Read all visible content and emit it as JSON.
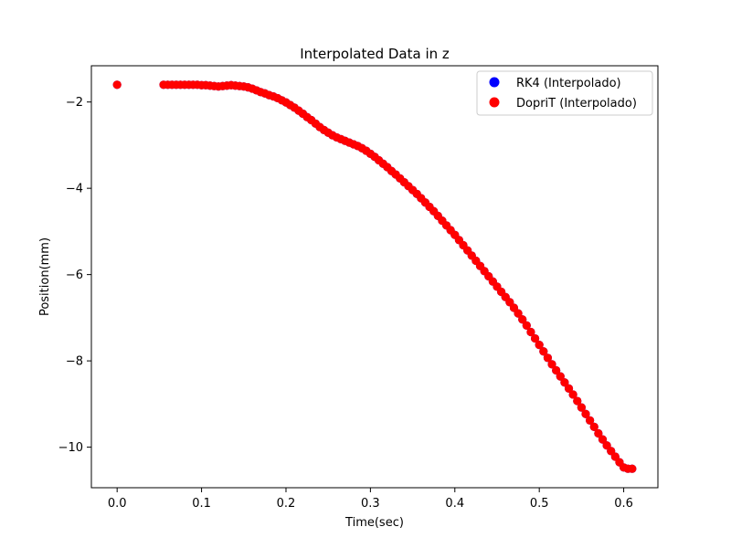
{
  "chart_data": {
    "type": "scatter",
    "title": "Interpolated Data in z",
    "xlabel": "Time(sec)",
    "ylabel": "Position(mm)",
    "xlim": [
      -0.0305,
      0.6405
    ],
    "ylim": [
      -10.94,
      -1.16
    ],
    "xticks": [
      0.0,
      0.1,
      0.2,
      0.3,
      0.4,
      0.5,
      0.6
    ],
    "xtick_labels": [
      "0.0",
      "0.1",
      "0.2",
      "0.3",
      "0.4",
      "0.5",
      "0.6"
    ],
    "yticks": [
      -2,
      -4,
      -6,
      -8,
      -10
    ],
    "ytick_labels": [
      "−2",
      "−4",
      "−6",
      "−8",
      "−10"
    ],
    "grid": false,
    "legend_position": "upper-right",
    "series": [
      {
        "name": "RK4 (Interpolado)",
        "color": "#0000ff",
        "points": [
          [
            0.0,
            -1.6
          ],
          [
            0.055,
            -1.6
          ],
          [
            0.06,
            -1.6
          ],
          [
            0.065,
            -1.6
          ],
          [
            0.07,
            -1.6
          ],
          [
            0.075,
            -1.6
          ],
          [
            0.08,
            -1.6
          ],
          [
            0.085,
            -1.6
          ],
          [
            0.09,
            -1.6
          ],
          [
            0.095,
            -1.6
          ],
          [
            0.1,
            -1.61
          ],
          [
            0.105,
            -1.61
          ],
          [
            0.11,
            -1.62
          ],
          [
            0.115,
            -1.63
          ],
          [
            0.12,
            -1.64
          ],
          [
            0.125,
            -1.63
          ],
          [
            0.13,
            -1.62
          ],
          [
            0.135,
            -1.61
          ],
          [
            0.14,
            -1.62
          ],
          [
            0.145,
            -1.63
          ],
          [
            0.15,
            -1.64
          ],
          [
            0.155,
            -1.66
          ],
          [
            0.16,
            -1.69
          ],
          [
            0.165,
            -1.73
          ],
          [
            0.17,
            -1.77
          ],
          [
            0.175,
            -1.8
          ],
          [
            0.18,
            -1.84
          ],
          [
            0.185,
            -1.87
          ],
          [
            0.19,
            -1.91
          ],
          [
            0.195,
            -1.96
          ],
          [
            0.2,
            -2.01
          ],
          [
            0.205,
            -2.07
          ],
          [
            0.21,
            -2.13
          ],
          [
            0.215,
            -2.2
          ],
          [
            0.22,
            -2.27
          ],
          [
            0.225,
            -2.35
          ],
          [
            0.23,
            -2.42
          ],
          [
            0.235,
            -2.5
          ],
          [
            0.24,
            -2.58
          ],
          [
            0.245,
            -2.65
          ],
          [
            0.25,
            -2.71
          ],
          [
            0.255,
            -2.77
          ],
          [
            0.26,
            -2.82
          ],
          [
            0.265,
            -2.86
          ],
          [
            0.27,
            -2.9
          ],
          [
            0.275,
            -2.94
          ],
          [
            0.28,
            -2.98
          ],
          [
            0.285,
            -3.02
          ],
          [
            0.29,
            -3.07
          ],
          [
            0.295,
            -3.13
          ],
          [
            0.3,
            -3.2
          ],
          [
            0.305,
            -3.27
          ],
          [
            0.31,
            -3.35
          ],
          [
            0.315,
            -3.43
          ],
          [
            0.32,
            -3.51
          ],
          [
            0.325,
            -3.6
          ],
          [
            0.33,
            -3.68
          ],
          [
            0.335,
            -3.77
          ],
          [
            0.34,
            -3.86
          ],
          [
            0.345,
            -3.95
          ],
          [
            0.35,
            -4.04
          ],
          [
            0.355,
            -4.13
          ],
          [
            0.36,
            -4.23
          ],
          [
            0.365,
            -4.33
          ],
          [
            0.37,
            -4.43
          ],
          [
            0.375,
            -4.53
          ],
          [
            0.38,
            -4.64
          ],
          [
            0.385,
            -4.75
          ],
          [
            0.39,
            -4.86
          ],
          [
            0.395,
            -4.97
          ],
          [
            0.4,
            -5.08
          ],
          [
            0.405,
            -5.2
          ],
          [
            0.41,
            -5.32
          ],
          [
            0.415,
            -5.44
          ],
          [
            0.42,
            -5.56
          ],
          [
            0.425,
            -5.68
          ],
          [
            0.43,
            -5.8
          ],
          [
            0.435,
            -5.92
          ],
          [
            0.44,
            -6.04
          ],
          [
            0.445,
            -6.16
          ],
          [
            0.45,
            -6.28
          ],
          [
            0.455,
            -6.4
          ],
          [
            0.46,
            -6.52
          ],
          [
            0.465,
            -6.64
          ],
          [
            0.47,
            -6.77
          ],
          [
            0.475,
            -6.9
          ],
          [
            0.48,
            -7.04
          ],
          [
            0.485,
            -7.18
          ],
          [
            0.49,
            -7.33
          ],
          [
            0.495,
            -7.48
          ],
          [
            0.5,
            -7.63
          ],
          [
            0.505,
            -7.78
          ],
          [
            0.51,
            -7.93
          ],
          [
            0.515,
            -8.08
          ],
          [
            0.52,
            -8.22
          ],
          [
            0.525,
            -8.36
          ],
          [
            0.53,
            -8.5
          ],
          [
            0.535,
            -8.64
          ],
          [
            0.54,
            -8.78
          ],
          [
            0.545,
            -8.93
          ],
          [
            0.55,
            -9.08
          ],
          [
            0.555,
            -9.23
          ],
          [
            0.56,
            -9.38
          ],
          [
            0.565,
            -9.53
          ],
          [
            0.57,
            -9.68
          ],
          [
            0.575,
            -9.82
          ],
          [
            0.58,
            -9.96
          ],
          [
            0.585,
            -10.09
          ],
          [
            0.59,
            -10.22
          ],
          [
            0.595,
            -10.35
          ],
          [
            0.6,
            -10.47
          ],
          [
            0.605,
            -10.5
          ],
          [
            0.61,
            -10.5
          ]
        ]
      },
      {
        "name": "DopriT (Interpolado)",
        "color": "#ff0000",
        "points": [
          [
            0.0,
            -1.6
          ],
          [
            0.055,
            -1.6
          ],
          [
            0.06,
            -1.6
          ],
          [
            0.065,
            -1.6
          ],
          [
            0.07,
            -1.6
          ],
          [
            0.075,
            -1.6
          ],
          [
            0.08,
            -1.6
          ],
          [
            0.085,
            -1.6
          ],
          [
            0.09,
            -1.6
          ],
          [
            0.095,
            -1.6
          ],
          [
            0.1,
            -1.61
          ],
          [
            0.105,
            -1.61
          ],
          [
            0.11,
            -1.62
          ],
          [
            0.115,
            -1.63
          ],
          [
            0.12,
            -1.64
          ],
          [
            0.125,
            -1.63
          ],
          [
            0.13,
            -1.62
          ],
          [
            0.135,
            -1.61
          ],
          [
            0.14,
            -1.62
          ],
          [
            0.145,
            -1.63
          ],
          [
            0.15,
            -1.64
          ],
          [
            0.155,
            -1.66
          ],
          [
            0.16,
            -1.69
          ],
          [
            0.165,
            -1.73
          ],
          [
            0.17,
            -1.77
          ],
          [
            0.175,
            -1.8
          ],
          [
            0.18,
            -1.84
          ],
          [
            0.185,
            -1.87
          ],
          [
            0.19,
            -1.91
          ],
          [
            0.195,
            -1.96
          ],
          [
            0.2,
            -2.01
          ],
          [
            0.205,
            -2.07
          ],
          [
            0.21,
            -2.13
          ],
          [
            0.215,
            -2.2
          ],
          [
            0.22,
            -2.27
          ],
          [
            0.225,
            -2.35
          ],
          [
            0.23,
            -2.42
          ],
          [
            0.235,
            -2.5
          ],
          [
            0.24,
            -2.58
          ],
          [
            0.245,
            -2.65
          ],
          [
            0.25,
            -2.71
          ],
          [
            0.255,
            -2.77
          ],
          [
            0.26,
            -2.82
          ],
          [
            0.265,
            -2.86
          ],
          [
            0.27,
            -2.9
          ],
          [
            0.275,
            -2.94
          ],
          [
            0.28,
            -2.98
          ],
          [
            0.285,
            -3.02
          ],
          [
            0.29,
            -3.07
          ],
          [
            0.295,
            -3.13
          ],
          [
            0.3,
            -3.2
          ],
          [
            0.305,
            -3.27
          ],
          [
            0.31,
            -3.35
          ],
          [
            0.315,
            -3.43
          ],
          [
            0.32,
            -3.51
          ],
          [
            0.325,
            -3.6
          ],
          [
            0.33,
            -3.68
          ],
          [
            0.335,
            -3.77
          ],
          [
            0.34,
            -3.86
          ],
          [
            0.345,
            -3.95
          ],
          [
            0.35,
            -4.04
          ],
          [
            0.355,
            -4.13
          ],
          [
            0.36,
            -4.23
          ],
          [
            0.365,
            -4.33
          ],
          [
            0.37,
            -4.43
          ],
          [
            0.375,
            -4.53
          ],
          [
            0.38,
            -4.64
          ],
          [
            0.385,
            -4.75
          ],
          [
            0.39,
            -4.86
          ],
          [
            0.395,
            -4.97
          ],
          [
            0.4,
            -5.08
          ],
          [
            0.405,
            -5.2
          ],
          [
            0.41,
            -5.32
          ],
          [
            0.415,
            -5.44
          ],
          [
            0.42,
            -5.56
          ],
          [
            0.425,
            -5.68
          ],
          [
            0.43,
            -5.8
          ],
          [
            0.435,
            -5.92
          ],
          [
            0.44,
            -6.04
          ],
          [
            0.445,
            -6.16
          ],
          [
            0.45,
            -6.28
          ],
          [
            0.455,
            -6.4
          ],
          [
            0.46,
            -6.52
          ],
          [
            0.465,
            -6.64
          ],
          [
            0.47,
            -6.77
          ],
          [
            0.475,
            -6.9
          ],
          [
            0.48,
            -7.04
          ],
          [
            0.485,
            -7.18
          ],
          [
            0.49,
            -7.33
          ],
          [
            0.495,
            -7.48
          ],
          [
            0.5,
            -7.63
          ],
          [
            0.505,
            -7.78
          ],
          [
            0.51,
            -7.93
          ],
          [
            0.515,
            -8.08
          ],
          [
            0.52,
            -8.22
          ],
          [
            0.525,
            -8.36
          ],
          [
            0.53,
            -8.5
          ],
          [
            0.535,
            -8.64
          ],
          [
            0.54,
            -8.78
          ],
          [
            0.545,
            -8.93
          ],
          [
            0.55,
            -9.08
          ],
          [
            0.555,
            -9.23
          ],
          [
            0.56,
            -9.38
          ],
          [
            0.565,
            -9.53
          ],
          [
            0.57,
            -9.68
          ],
          [
            0.575,
            -9.82
          ],
          [
            0.58,
            -9.96
          ],
          [
            0.585,
            -10.09
          ],
          [
            0.59,
            -10.22
          ],
          [
            0.595,
            -10.35
          ],
          [
            0.6,
            -10.47
          ],
          [
            0.605,
            -10.5
          ],
          [
            0.61,
            -10.5
          ]
        ]
      }
    ]
  }
}
